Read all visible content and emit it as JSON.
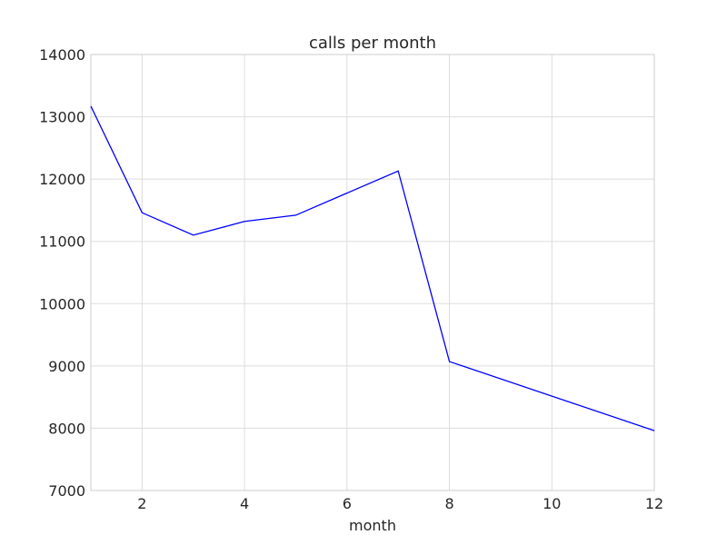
{
  "chart_data": {
    "type": "line",
    "title": "calls per month",
    "xlabel": "month",
    "ylabel": "",
    "xlim": [
      1,
      12
    ],
    "ylim": [
      7000,
      14000
    ],
    "xticks": [
      2,
      4,
      6,
      8,
      10,
      12
    ],
    "yticks": [
      7000,
      8000,
      9000,
      10000,
      11000,
      12000,
      13000,
      14000
    ],
    "grid": true,
    "series": [
      {
        "name": "calls",
        "color": "#0000ff",
        "x": [
          1,
          2,
          3,
          4,
          5,
          7,
          8,
          12
        ],
        "values": [
          13170,
          11460,
          11100,
          11320,
          11420,
          12130,
          9070,
          7960
        ]
      }
    ]
  }
}
